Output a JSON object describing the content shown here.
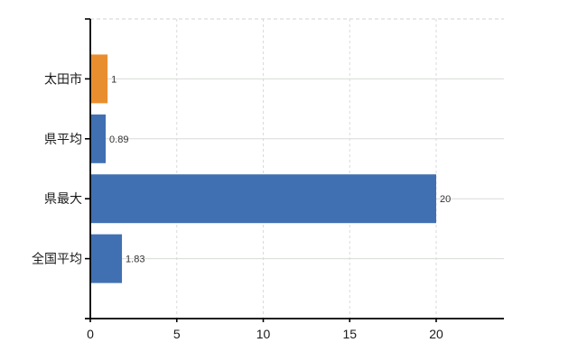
{
  "chart_data": {
    "type": "bar",
    "orientation": "horizontal",
    "title": "",
    "categories": [
      "太田市",
      "県平均",
      "県最大",
      "全国平均"
    ],
    "values": [
      1,
      0.89,
      20,
      1.83
    ],
    "value_labels": [
      "1",
      "0.89",
      "20",
      "1.83"
    ],
    "bar_colors": [
      "#e98e2e",
      "#4170b2",
      "#4170b2",
      "#4170b2"
    ],
    "highlight_category": "太田市",
    "x_ticks": [
      0,
      5,
      10,
      15,
      20
    ],
    "x_tick_labels": [
      "0",
      "5",
      "10",
      "15",
      "20"
    ],
    "xlim": [
      0,
      24
    ],
    "grid": true,
    "legend": false,
    "colors": {
      "bar_highlight": "#e98e2e",
      "bar_default": "#4170b2",
      "grid_horizontal": "#d7dcd7",
      "grid_vertical": "#dadada",
      "top_border_dashed": "#d0d0d0",
      "axis": "#000000",
      "tick_text": "#1a1a1a",
      "category_text": "#1a1a1a",
      "value_text": "#333333",
      "background": "#ffffff"
    }
  }
}
